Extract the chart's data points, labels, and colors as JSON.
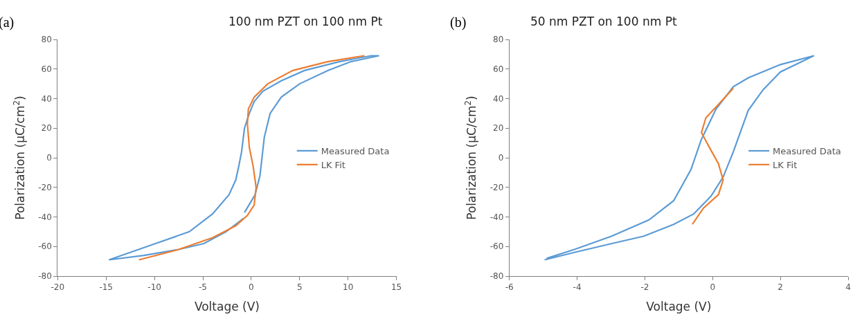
{
  "chart_data": [
    {
      "type": "line",
      "title": "100 nm PZT on 100 nm Pt",
      "xlabel": "Voltage (V)",
      "ylabel": "Polarization (μC/cm$^{2}$)",
      "annotations": [
        "(a)"
      ],
      "xlim": [
        -20,
        15
      ],
      "xticks": [
        -20,
        -15,
        -10,
        -5,
        0,
        5,
        10,
        15
      ],
      "ylim": [
        -80,
        80
      ],
      "yticks": [
        -80,
        -60,
        -40,
        -20,
        0,
        20,
        40,
        60,
        80
      ],
      "legend": "right",
      "marker": "none",
      "line_style": "solid",
      "series": [
        {
          "name": "Measured Data",
          "color": "#5b9bd5",
          "x": [
            -0.7,
            0.4,
            0.9,
            1.35,
            1.95,
            3.1,
            5,
            7.9,
            10.3,
            13.2,
            12.4,
            9.1,
            5.5,
            3.1,
            1.2,
            0.3,
            -0.2,
            -0.7,
            -1.0,
            -1.3,
            -1.6,
            -2.3,
            -4,
            -6.4,
            -9.9,
            -14.7,
            -11.1,
            -7.5,
            -4.9,
            -2.6,
            -0.8
          ],
          "values": [
            -37,
            -25,
            -12,
            14,
            30,
            41,
            50,
            59,
            65,
            69,
            69,
            65,
            59,
            52,
            45,
            38,
            30,
            20,
            4,
            -6,
            -15,
            -25,
            -38,
            -50,
            -58,
            -69,
            -66,
            -62,
            -58,
            -50,
            -41
          ]
        },
        {
          "name": "LK Fit",
          "color": "#ed7d31",
          "x": [
            -11.6,
            -7.5,
            -4,
            -1.6,
            -0.4,
            0.3,
            0.5,
            0.2,
            -0.2,
            -0.4,
            -0.3,
            0.3,
            1.7,
            4.3,
            7.9,
            11.7
          ],
          "values": [
            -69,
            -62,
            -54,
            -46,
            -39,
            -32,
            -20,
            -6,
            7,
            23,
            33,
            41,
            50,
            59,
            65,
            69
          ]
        }
      ]
    },
    {
      "type": "line",
      "title": "50 nm PZT on 100 nm Pt",
      "xlabel": "Voltage (V)",
      "ylabel": "Polarization (μC/cm$^{2}$)",
      "annotations": [
        "(b)"
      ],
      "xlim": [
        -6,
        4
      ],
      "xticks": [
        -6,
        -4,
        -2,
        0,
        2,
        4
      ],
      "ylim": [
        -80,
        80
      ],
      "yticks": [
        -80,
        -60,
        -40,
        -20,
        0,
        20,
        40,
        60,
        80
      ],
      "legend": "right",
      "marker": "none",
      "line_style": "solid",
      "series": [
        {
          "name": "Measured Data",
          "color": "#5b9bd5",
          "x": [
            -4.96,
            -4.08,
            -2.98,
            -2.03,
            -1.15,
            -0.56,
            -0.05,
            0.31,
            0.61,
            1.05,
            1.49,
            2,
            2.99,
            2,
            1.05,
            0.61,
            0.1,
            -0.34,
            -0.64,
            -1.15,
            -1.88,
            -2.98,
            -4.08,
            -4.9
          ],
          "values": [
            -69,
            -64,
            -58,
            -53,
            -45,
            -38,
            -26,
            -13,
            4,
            32,
            46,
            58,
            69,
            63,
            54,
            48,
            33,
            12,
            -8,
            -29,
            -42,
            -53,
            -62,
            -68
          ]
        },
        {
          "name": "LK Fit",
          "color": "#ed7d31",
          "x": [
            -0.6,
            -0.27,
            0.17,
            0.31,
            0.17,
            -0.12,
            -0.33,
            -0.2,
            0.17,
            0.61
          ],
          "values": [
            -45,
            -34,
            -25,
            -15,
            -4,
            8,
            17,
            27,
            36,
            47
          ]
        }
      ]
    }
  ]
}
